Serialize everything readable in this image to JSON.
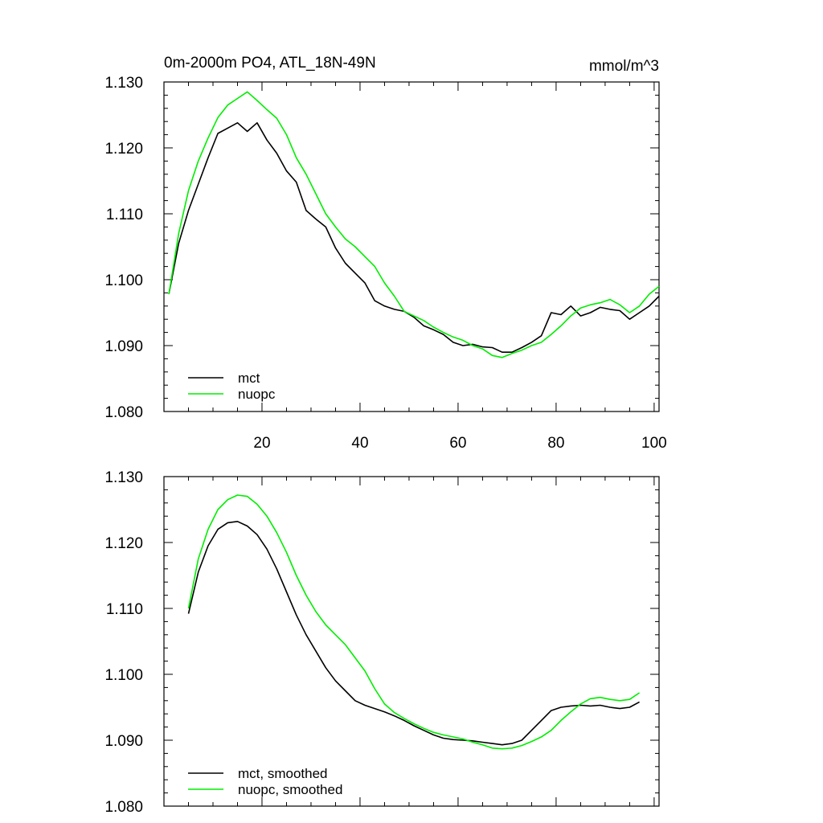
{
  "chart_data": [
    {
      "type": "line",
      "title": "0m-2000m PO4, ATL_18N-49N",
      "units": "mmol/m^3",
      "xlabel": "",
      "ylabel": "",
      "xlim": [
        0,
        101
      ],
      "ylim": [
        1.08,
        1.13
      ],
      "x_ticks": [
        20,
        40,
        60,
        80,
        100
      ],
      "y_ticks": [
        "1.080",
        "1.090",
        "1.100",
        "1.110",
        "1.120",
        "1.130"
      ],
      "legend_position": "bottom-left",
      "series": [
        {
          "name": "mct",
          "color": "#000000",
          "x": [
            1,
            3,
            5,
            7,
            9,
            11,
            13,
            15,
            17,
            19,
            21,
            23,
            25,
            27,
            29,
            31,
            33,
            35,
            37,
            39,
            41,
            43,
            45,
            47,
            49,
            51,
            53,
            55,
            57,
            59,
            61,
            63,
            65,
            67,
            69,
            71,
            73,
            75,
            77,
            79,
            81,
            83,
            85,
            87,
            89,
            91,
            93,
            95,
            97,
            99,
            101
          ],
          "y": [
            1.0978,
            1.1055,
            1.1105,
            1.1145,
            1.1185,
            1.1222,
            1.123,
            1.1238,
            1.1225,
            1.1238,
            1.1212,
            1.1192,
            1.1165,
            1.1148,
            1.1105,
            1.1092,
            1.108,
            1.1048,
            1.1025,
            1.101,
            1.0995,
            1.0968,
            1.096,
            1.0955,
            1.0952,
            1.0943,
            1.093,
            1.0924,
            1.0917,
            1.0905,
            1.09,
            1.0902,
            1.0898,
            1.0897,
            1.089,
            1.089,
            1.0897,
            1.0905,
            1.0915,
            1.095,
            1.0947,
            1.096,
            1.0945,
            1.095,
            1.0958,
            1.0955,
            1.0953,
            1.094,
            1.095,
            1.096,
            1.0975
          ]
        },
        {
          "name": "nuopc",
          "color": "#00ee00",
          "x": [
            1,
            3,
            5,
            7,
            9,
            11,
            13,
            15,
            17,
            19,
            21,
            23,
            25,
            27,
            29,
            31,
            33,
            35,
            37,
            39,
            41,
            43,
            45,
            47,
            49,
            51,
            53,
            55,
            57,
            59,
            61,
            63,
            65,
            67,
            69,
            71,
            73,
            75,
            77,
            79,
            81,
            83,
            85,
            87,
            89,
            91,
            93,
            95,
            97,
            99,
            101
          ],
          "y": [
            1.0978,
            1.107,
            1.1135,
            1.118,
            1.1215,
            1.1246,
            1.1265,
            1.1275,
            1.1285,
            1.1272,
            1.1258,
            1.1245,
            1.122,
            1.1185,
            1.116,
            1.113,
            1.11,
            1.108,
            1.1062,
            1.105,
            1.1035,
            1.102,
            1.0995,
            1.0975,
            1.0952,
            1.0945,
            1.0938,
            1.0928,
            1.092,
            1.0913,
            1.0908,
            1.09,
            1.0895,
            1.0885,
            1.0882,
            1.0888,
            1.0893,
            1.09,
            1.0905,
            1.0917,
            1.093,
            1.0945,
            1.0957,
            1.0962,
            1.0965,
            1.097,
            1.0962,
            1.095,
            1.096,
            1.0978,
            1.099
          ]
        }
      ]
    },
    {
      "type": "line",
      "title": "",
      "units": "",
      "xlabel": "",
      "ylabel": "",
      "xlim": [
        0,
        101
      ],
      "ylim": [
        1.08,
        1.13
      ],
      "x_ticks": [
        20,
        40,
        60,
        80,
        100
      ],
      "y_ticks": [
        "1.080",
        "1.090",
        "1.100",
        "1.110",
        "1.120",
        "1.130"
      ],
      "legend_position": "bottom-left",
      "series": [
        {
          "name": "mct, smoothed",
          "color": "#000000",
          "x": [
            5,
            7,
            9,
            11,
            13,
            15,
            17,
            19,
            21,
            23,
            25,
            27,
            29,
            31,
            33,
            35,
            37,
            39,
            41,
            43,
            45,
            47,
            49,
            51,
            53,
            55,
            57,
            59,
            61,
            63,
            65,
            67,
            69,
            71,
            73,
            75,
            77,
            79,
            81,
            83,
            85,
            87,
            89,
            91,
            93,
            95,
            97
          ],
          "y": [
            1.1092,
            1.1155,
            1.1195,
            1.122,
            1.123,
            1.1232,
            1.1225,
            1.1212,
            1.119,
            1.116,
            1.1125,
            1.109,
            1.106,
            1.1035,
            1.101,
            1.099,
            1.0975,
            1.096,
            1.0953,
            1.0948,
            1.0943,
            1.0937,
            1.093,
            1.0922,
            1.0915,
            1.0908,
            1.0903,
            1.0901,
            1.09,
            1.0899,
            1.0897,
            1.0895,
            1.0893,
            1.0895,
            1.09,
            1.0915,
            1.093,
            1.0945,
            1.095,
            1.0952,
            1.0953,
            1.0952,
            1.0953,
            1.095,
            1.0948,
            1.095,
            1.0958
          ]
        },
        {
          "name": "nuopc, smoothed",
          "color": "#00ee00",
          "x": [
            5,
            7,
            9,
            11,
            13,
            15,
            17,
            19,
            21,
            23,
            25,
            27,
            29,
            31,
            33,
            35,
            37,
            39,
            41,
            43,
            45,
            47,
            49,
            51,
            53,
            55,
            57,
            59,
            61,
            63,
            65,
            67,
            69,
            71,
            73,
            75,
            77,
            79,
            81,
            83,
            85,
            87,
            89,
            91,
            93,
            95,
            97
          ],
          "y": [
            1.11,
            1.1175,
            1.122,
            1.125,
            1.1265,
            1.1272,
            1.127,
            1.1258,
            1.124,
            1.1215,
            1.1185,
            1.115,
            1.112,
            1.1095,
            1.1075,
            1.106,
            1.1045,
            1.1025,
            1.1005,
            1.0978,
            1.0955,
            1.0942,
            1.0933,
            1.0925,
            1.0918,
            1.0912,
            1.0908,
            1.0905,
            1.0902,
            1.0897,
            1.0893,
            1.0888,
            1.0887,
            1.0888,
            1.0892,
            1.0898,
            1.0905,
            1.0915,
            1.093,
            1.0943,
            1.0955,
            1.0963,
            1.0965,
            1.0962,
            1.096,
            1.0962,
            1.0972
          ]
        }
      ]
    }
  ]
}
